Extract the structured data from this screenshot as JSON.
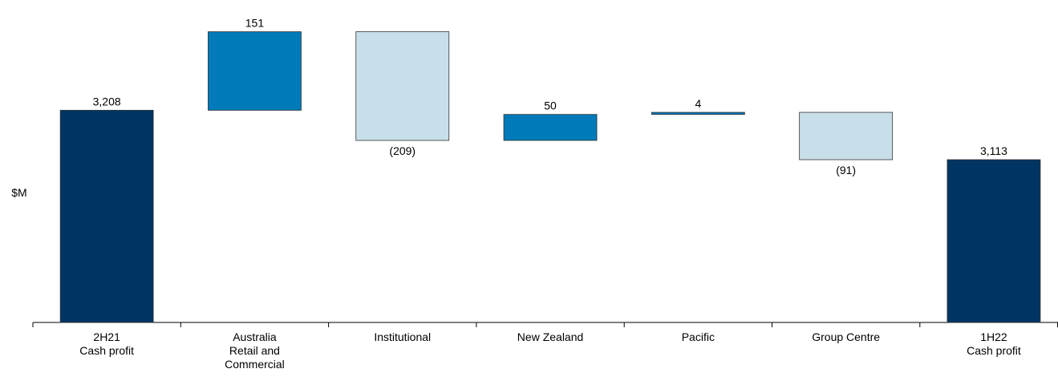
{
  "chart_data": {
    "type": "waterfall",
    "ylabel": "$M",
    "categories": [
      "2H21\nCash profit",
      "Australia\nRetail and\nCommercial",
      "Institutional",
      "New Zealand",
      "Pacific",
      "Group Centre",
      "1H22\nCash profit"
    ],
    "values": [
      3208,
      151,
      -209,
      50,
      4,
      -91,
      3113
    ],
    "value_labels": [
      "3,208",
      "151",
      "(209)",
      "50",
      "4",
      "(91)",
      "3,113"
    ],
    "colors": [
      "#003462",
      "#007ab8",
      "#c8dfea",
      "#007ab8",
      "#007ab8",
      "#c8dfea",
      "#003462"
    ],
    "ylim": [
      2800,
      3420
    ]
  }
}
